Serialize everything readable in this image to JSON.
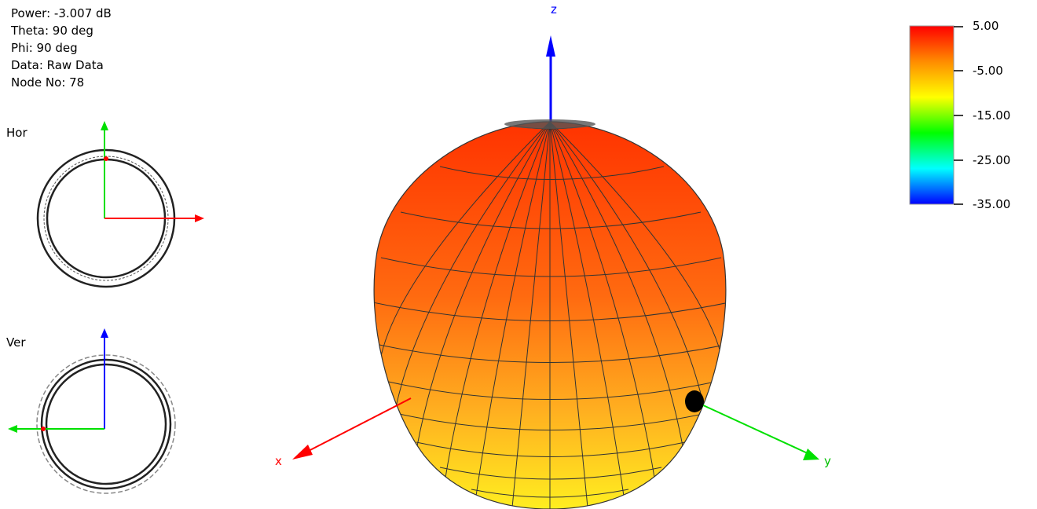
{
  "info": {
    "power": "Power: -3.007 dB",
    "theta": "Theta: 90 deg",
    "phi": "Phi: 90 deg",
    "data": "Data: Raw Data",
    "node": "Node No: 78"
  },
  "views": {
    "horizontal_label": "Hor",
    "vertical_label": "Ver"
  },
  "axes": {
    "x": "x",
    "y": "y",
    "z": "z"
  },
  "legend": {
    "ticks": [
      "5.00",
      "-5.00",
      "-15.00",
      "-25.00",
      "-35.00"
    ],
    "colors": [
      "#ff0000",
      "#ff8c00",
      "#ffff00",
      "#00ff00",
      "#00ffff",
      "#0000ff"
    ]
  },
  "axis_colors": {
    "x": "#ff0000",
    "y": "#00e000",
    "z": "#0000ff"
  }
}
